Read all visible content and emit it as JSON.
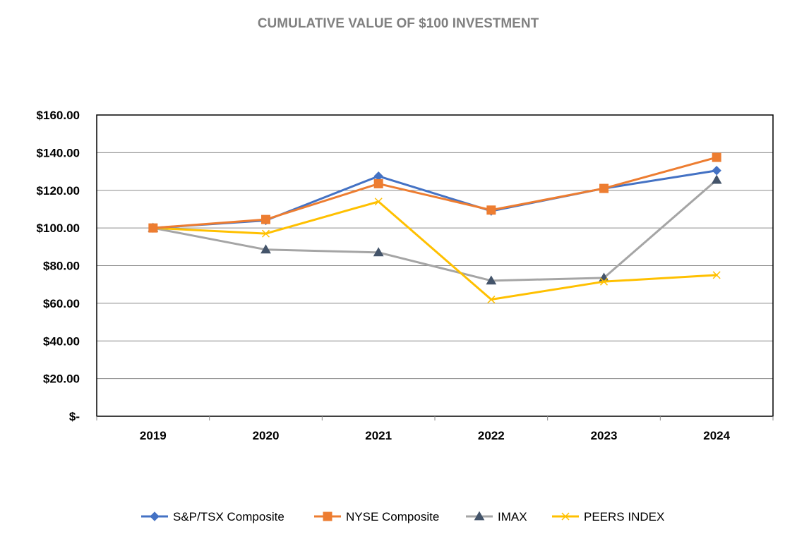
{
  "chart_data": {
    "type": "line",
    "title": "CUMULATIVE VALUE OF $100 INVESTMENT",
    "xlabel": "",
    "ylabel": "",
    "categories": [
      "2019",
      "2020",
      "2021",
      "2022",
      "2023",
      "2024"
    ],
    "ylim": [
      0,
      160
    ],
    "yticks": [
      0,
      20,
      40,
      60,
      80,
      100,
      120,
      140,
      160
    ],
    "ytick_labels": [
      "$-",
      "$20.00",
      "$40.00",
      "$60.00",
      "$80.00",
      "$100.00",
      "$120.00",
      "$140.00",
      "$160.00"
    ],
    "grid": true,
    "legend_position": "bottom",
    "series": [
      {
        "name": "S&P/TSX Composite",
        "color": "#4472C4",
        "marker": "diamond",
        "values": [
          100,
          104,
          127.5,
          109,
          121,
          130.5
        ]
      },
      {
        "name": "NYSE Composite",
        "color": "#ED7D31",
        "marker": "square",
        "values": [
          100,
          104.5,
          123.5,
          109.5,
          121,
          137.5
        ]
      },
      {
        "name": "IMAX",
        "color": "#A5A5A5",
        "marker": "triangle",
        "values": [
          100,
          88.5,
          87,
          72,
          73.5,
          125.5
        ]
      },
      {
        "name": "PEERS INDEX",
        "color": "#FFC000",
        "marker": "x",
        "values": [
          100,
          97,
          114,
          62,
          71.5,
          75
        ]
      }
    ]
  }
}
